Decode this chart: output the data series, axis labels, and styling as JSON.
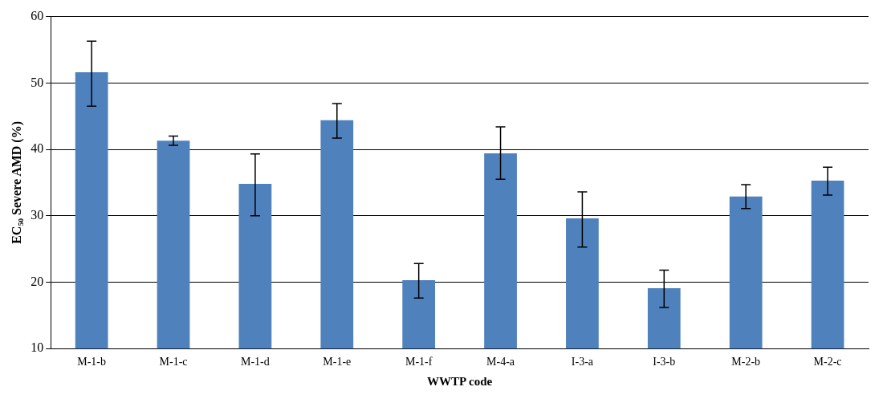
{
  "chart_data": {
    "type": "bar",
    "xlabel": "WWTP code",
    "ylabel": "EC₅₀ Severe AMD (%)",
    "categories": [
      "M-1-b",
      "M-1-c",
      "M-1-d",
      "M-1-e",
      "M-1-f",
      "M-4-a",
      "I-3-a",
      "I-3-b",
      "M-2-b",
      "M-2-c"
    ],
    "values": [
      51.6,
      41.3,
      34.8,
      44.4,
      20.3,
      39.4,
      29.6,
      19.1,
      32.9,
      35.3
    ],
    "errors": [
      [
        46.5,
        56.3
      ],
      [
        40.6,
        42.0
      ],
      [
        30.0,
        39.3
      ],
      [
        41.7,
        46.9
      ],
      [
        17.6,
        22.8
      ],
      [
        35.5,
        43.4
      ],
      [
        25.3,
        33.6
      ],
      [
        16.2,
        21.8
      ],
      [
        31.1,
        34.7
      ],
      [
        33.1,
        37.3
      ]
    ],
    "color": "#4f81bd",
    "ylim": [
      10,
      60
    ],
    "yticks": [
      10,
      20,
      30,
      40,
      50,
      60
    ],
    "grid": "y",
    "legend": false
  }
}
